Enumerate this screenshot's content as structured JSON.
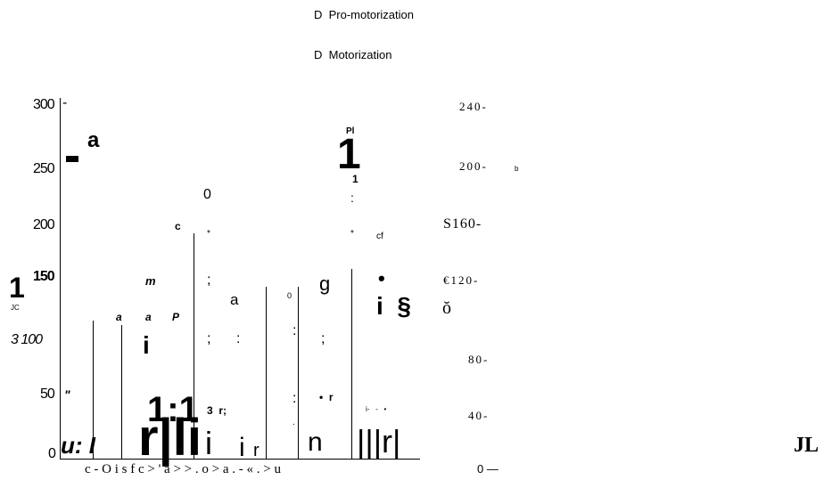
{
  "legend": [
    "D  Pro-motorization",
    "D  Motorization"
  ],
  "left_axis": [
    "300",
    "-",
    "250",
    "200",
    "150",
    "3 100",
    "50",
    "\"",
    "0",
    "1",
    "JC"
  ],
  "right_axis": [
    "240-",
    "200-",
    "b",
    "S160-",
    "€120-",
    "ŏ",
    "80-",
    "40-",
    "0 —"
  ],
  "plot_texts": [
    "u: I",
    "a",
    "c",
    "m",
    "a",
    "a",
    "P",
    "i",
    "1:1",
    "r|li",
    "0",
    "*",
    ";",
    "a",
    ";",
    ":",
    "3  r;",
    "i",
    "i",
    "r",
    "0",
    ":",
    ";",
    ":",
    "g",
    "•  r",
    "n",
    "Pl",
    "1",
    "1",
    ":",
    "*",
    "cf",
    "•",
    "i  §",
    "i-   -   •",
    "|||r|",
    "."
  ],
  "x_axis_text": "c - O i s f c > ' a > > . o > a . - « . > u",
  "corner_text": "JL"
}
